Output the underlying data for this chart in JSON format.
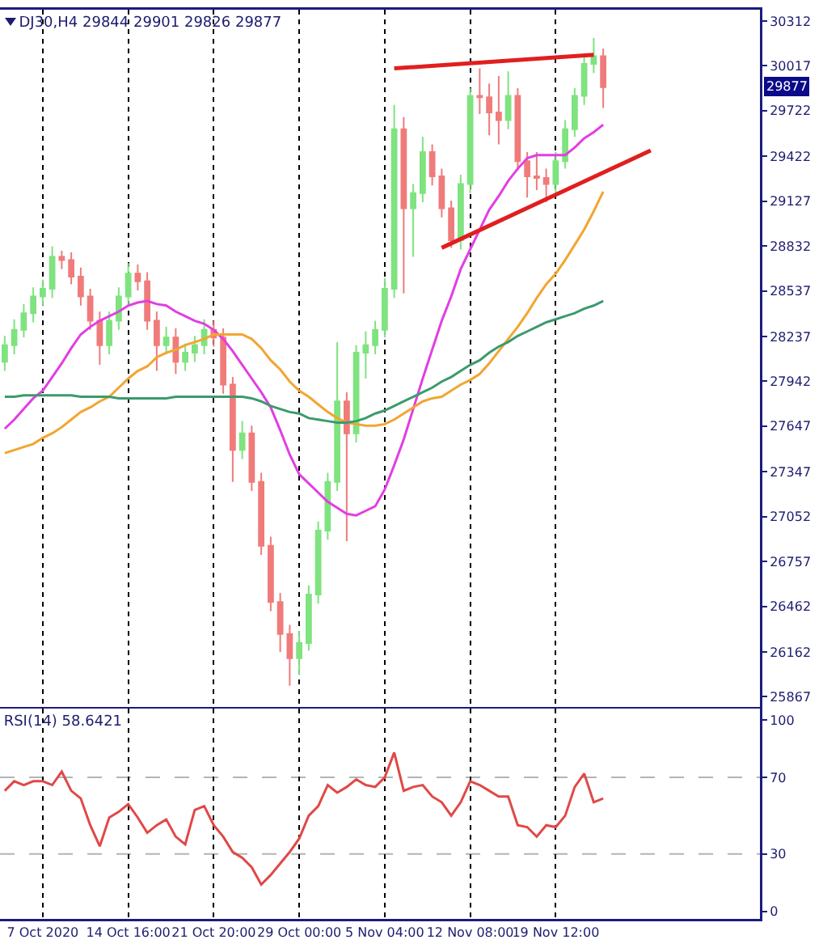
{
  "chart_data": [
    {
      "type": "candlestick",
      "title": "DJ30,H4 29844 29901 29826 29877",
      "categories": [
        null,
        null,
        null,
        null,
        null,
        null,
        null,
        null,
        null,
        null,
        null,
        null,
        null,
        null,
        null,
        null,
        null,
        null,
        null,
        null,
        null,
        null,
        null,
        null,
        null,
        null,
        null,
        null,
        null,
        null,
        null,
        null,
        null,
        null,
        null,
        null,
        null,
        null,
        null,
        null,
        null,
        null,
        null,
        null,
        null,
        null,
        null,
        null,
        null,
        null,
        null,
        null,
        null,
        null,
        null,
        null,
        null,
        null,
        null,
        null,
        null,
        null,
        null,
        null,
        null,
        null,
        null,
        null,
        null,
        null,
        null,
        null,
        null,
        null,
        null,
        null,
        null,
        null,
        null,
        null
      ],
      "ohlc": [
        [
          28070,
          28240,
          28010,
          28180
        ],
        [
          28180,
          28350,
          28120,
          28280
        ],
        [
          28280,
          28450,
          28230,
          28390
        ],
        [
          28390,
          28560,
          28330,
          28500
        ],
        [
          28500,
          28610,
          28440,
          28550
        ],
        [
          28550,
          28830,
          28490,
          28760
        ],
        [
          28760,
          28800,
          28680,
          28740
        ],
        [
          28740,
          28790,
          28580,
          28630
        ],
        [
          28630,
          28690,
          28440,
          28500
        ],
        [
          28500,
          28550,
          28280,
          28340
        ],
        [
          28340,
          28400,
          28050,
          28180
        ],
        [
          28180,
          28400,
          28120,
          28340
        ],
        [
          28340,
          28560,
          28280,
          28500
        ],
        [
          28500,
          28720,
          28440,
          28650
        ],
        [
          28650,
          28710,
          28540,
          28600
        ],
        [
          28600,
          28660,
          28280,
          28340
        ],
        [
          28340,
          28400,
          28010,
          28180
        ],
        [
          28180,
          28300,
          28120,
          28230
        ],
        [
          28230,
          28290,
          27990,
          28070
        ],
        [
          28070,
          28190,
          28010,
          28130
        ],
        [
          28130,
          28240,
          28070,
          28180
        ],
        [
          28180,
          28350,
          28120,
          28280
        ],
        [
          28280,
          28340,
          28170,
          28230
        ],
        [
          28230,
          28290,
          27860,
          27920
        ],
        [
          27920,
          27970,
          27280,
          27490
        ],
        [
          27490,
          27680,
          27430,
          27600
        ],
        [
          27600,
          27650,
          27220,
          27280
        ],
        [
          27280,
          27340,
          26800,
          26860
        ],
        [
          26860,
          26920,
          26430,
          26490
        ],
        [
          26490,
          26550,
          26160,
          26280
        ],
        [
          26280,
          26340,
          25940,
          26120
        ],
        [
          26120,
          26300,
          26010,
          26220
        ],
        [
          26220,
          26600,
          26170,
          26540
        ],
        [
          26540,
          27020,
          26480,
          26960
        ],
        [
          26960,
          27340,
          26900,
          27280
        ],
        [
          27280,
          28200,
          27220,
          27810
        ],
        [
          27810,
          27870,
          26890,
          27600
        ],
        [
          27600,
          28180,
          27540,
          28130
        ],
        [
          28130,
          28270,
          27960,
          28180
        ],
        [
          28180,
          28340,
          28120,
          28280
        ],
        [
          28280,
          28620,
          28230,
          28550
        ],
        [
          28550,
          29760,
          28490,
          29600
        ],
        [
          29600,
          29680,
          28520,
          29080
        ],
        [
          29080,
          29240,
          28760,
          29180
        ],
        [
          29180,
          29550,
          29120,
          29450
        ],
        [
          29450,
          29500,
          29230,
          29290
        ],
        [
          29290,
          29340,
          29020,
          29080
        ],
        [
          29080,
          29130,
          28820,
          28870
        ],
        [
          28870,
          29300,
          28810,
          29240
        ],
        [
          29240,
          29870,
          29180,
          29820
        ],
        [
          29820,
          30000,
          29700,
          29810
        ],
        [
          29810,
          29900,
          29560,
          29710
        ],
        [
          29710,
          29950,
          29500,
          29660
        ],
        [
          29660,
          29980,
          29600,
          29820
        ],
        [
          29820,
          29870,
          29330,
          29390
        ],
        [
          29390,
          29450,
          29150,
          29290
        ],
        [
          29290,
          29450,
          29200,
          29280
        ],
        [
          29280,
          29340,
          29120,
          29240
        ],
        [
          29240,
          29450,
          29180,
          29390
        ],
        [
          29390,
          29660,
          29340,
          29600
        ],
        [
          29600,
          29870,
          29550,
          29820
        ],
        [
          29820,
          30080,
          29760,
          30030
        ],
        [
          30030,
          30200,
          29970,
          30080
        ],
        [
          30080,
          30130,
          29740,
          29877
        ],
        null,
        null,
        null,
        null,
        null,
        null,
        null,
        null,
        null,
        null,
        null,
        null,
        null,
        null,
        null,
        null
      ],
      "colors": [
        "#7fe37f",
        "#7fe37f",
        "#7fe37f",
        "#7fe37f",
        "#7fe37f",
        "#7fe37f",
        "#f07b7b",
        "#f07b7b",
        "#f07b7b",
        "#f07b7b",
        "#f07b7b",
        "#7fe37f",
        "#7fe37f",
        "#7fe37f",
        "#f07b7b",
        "#f07b7b",
        "#f07b7b",
        "#7fe37f",
        "#f07b7b",
        "#7fe37f",
        "#7fe37f",
        "#7fe37f",
        "#f07b7b",
        "#f07b7b",
        "#f07b7b",
        "#7fe37f",
        "#f07b7b",
        "#f07b7b",
        "#f07b7b",
        "#f07b7b",
        "#f07b7b",
        "#7fe37f",
        "#7fe37f",
        "#7fe37f",
        "#7fe37f",
        "#7fe37f",
        "#f07b7b",
        "#7fe37f",
        "#7fe37f",
        "#7fe37f",
        "#7fe37f",
        "#7fe37f",
        "#f07b7b",
        "#7fe37f",
        "#7fe37f",
        "#f07b7b",
        "#f07b7b",
        "#f07b7b",
        "#7fe37f",
        "#7fe37f",
        "#f07b7b",
        "#f07b7b",
        "#f07b7b",
        "#7fe37f",
        "#f07b7b",
        "#f07b7b",
        "#f07b7b",
        "#f07b7b",
        "#7fe37f",
        "#7fe37f",
        "#7fe37f",
        "#7fe37f",
        "#7fe37f",
        "#f07b7b",
        null,
        null,
        null,
        null,
        null,
        null,
        null,
        null,
        null,
        null,
        null,
        null,
        null,
        null,
        null,
        null
      ],
      "series": [
        {
          "type": "line",
          "color": "#e23ee2",
          "values": [
            27630,
            27690,
            27760,
            27830,
            27880,
            27970,
            28060,
            28160,
            28250,
            28300,
            28340,
            28370,
            28400,
            28440,
            28460,
            28470,
            28450,
            28440,
            28400,
            28370,
            28340,
            28320,
            28280,
            28220,
            28140,
            28050,
            27960,
            27870,
            27770,
            27620,
            27460,
            27330,
            27270,
            27210,
            27150,
            27110,
            27070,
            27060,
            27090,
            27120,
            27230,
            27390,
            27560,
            27760,
            27960,
            28150,
            28340,
            28500,
            28680,
            28810,
            28940,
            29070,
            29160,
            29260,
            29340,
            29410,
            29430,
            29430,
            29430,
            29430,
            29480,
            29540,
            29580,
            29630,
            null,
            null,
            null,
            null,
            null,
            null,
            null,
            null,
            null,
            null,
            null,
            null,
            null,
            null,
            null,
            null
          ]
        },
        {
          "type": "line",
          "color": "#f2a531",
          "values": [
            27470,
            27490,
            27510,
            27530,
            27570,
            27600,
            27640,
            27690,
            27740,
            27770,
            27810,
            27840,
            27900,
            27960,
            28010,
            28040,
            28100,
            28130,
            28150,
            28180,
            28200,
            28220,
            28250,
            28250,
            28250,
            28250,
            28220,
            28160,
            28080,
            28020,
            27940,
            27880,
            27840,
            27790,
            27740,
            27700,
            27670,
            27660,
            27650,
            27650,
            27660,
            27690,
            27730,
            27770,
            27810,
            27830,
            27840,
            27880,
            27920,
            27950,
            27990,
            28060,
            28140,
            28220,
            28300,
            28390,
            28490,
            28580,
            28650,
            28740,
            28840,
            28940,
            29060,
            29190,
            null,
            null,
            null,
            null,
            null,
            null,
            null,
            null,
            null,
            null,
            null,
            null,
            null,
            null,
            null,
            null
          ]
        },
        {
          "type": "line",
          "color": "#3c9a6e",
          "values": [
            27840,
            27840,
            27850,
            27850,
            27850,
            27850,
            27850,
            27850,
            27840,
            27840,
            27840,
            27840,
            27830,
            27830,
            27830,
            27830,
            27830,
            27830,
            27840,
            27840,
            27840,
            27840,
            27840,
            27840,
            27840,
            27840,
            27830,
            27810,
            27780,
            27760,
            27740,
            27730,
            27700,
            27690,
            27680,
            27670,
            27670,
            27680,
            27700,
            27730,
            27750,
            27780,
            27810,
            27840,
            27870,
            27900,
            27940,
            27970,
            28010,
            28050,
            28080,
            28130,
            28170,
            28200,
            28240,
            28270,
            28300,
            28330,
            28350,
            28370,
            28390,
            28420,
            28440,
            28470,
            null,
            null,
            null,
            null,
            null,
            null,
            null,
            null,
            null,
            null,
            null,
            null,
            null,
            null,
            null,
            null
          ]
        },
        {
          "type": "line",
          "color": "#e01f1f",
          "values": [
            null,
            null,
            null,
            null,
            null,
            null,
            null,
            null,
            null,
            null,
            null,
            null,
            null,
            null,
            null,
            null,
            null,
            null,
            null,
            null,
            null,
            null,
            null,
            null,
            null,
            null,
            null,
            null,
            null,
            null,
            null,
            null,
            null,
            null,
            null,
            null,
            null,
            null,
            null,
            null,
            null,
            30000,
            null,
            null,
            null,
            null,
            null,
            null,
            null,
            null,
            null,
            null,
            null,
            null,
            null,
            null,
            null,
            null,
            null,
            null,
            null,
            null,
            30090,
            null,
            null,
            null,
            null,
            null,
            null,
            null,
            null,
            null,
            null,
            null,
            null,
            null,
            null,
            null,
            null,
            null
          ]
        },
        {
          "type": "line",
          "color": "#e01f1f",
          "values": [
            null,
            null,
            null,
            null,
            null,
            null,
            null,
            null,
            null,
            null,
            null,
            null,
            null,
            null,
            null,
            null,
            null,
            null,
            null,
            null,
            null,
            null,
            null,
            null,
            null,
            null,
            null,
            null,
            null,
            null,
            null,
            null,
            null,
            null,
            null,
            null,
            null,
            null,
            null,
            null,
            null,
            null,
            null,
            null,
            null,
            null,
            28820,
            null,
            null,
            null,
            null,
            null,
            null,
            null,
            null,
            null,
            null,
            null,
            null,
            null,
            null,
            null,
            null,
            null,
            null,
            null,
            null,
            null,
            29460,
            null,
            null,
            null,
            null,
            null,
            null,
            null,
            null,
            null,
            null,
            null
          ]
        }
      ],
      "annotations": [
        {
          "text": "29877",
          "y": 29877
        }
      ],
      "ylim": [
        25800,
        30386
      ],
      "yticks": [
        30312,
        30017,
        29722,
        29422,
        29127,
        28832,
        28537,
        28237,
        27942,
        27647,
        27347,
        27052,
        26757,
        26462,
        26162,
        25867
      ],
      "grid": "x",
      "legend": false,
      "tick_labels": "y"
    },
    {
      "type": "line",
      "title": "RSI(14) 58.6421",
      "categories": [
        null,
        null,
        null,
        null,
        "7 Oct 2020",
        null,
        null,
        null,
        null,
        null,
        null,
        null,
        null,
        "14 Oct 16:00",
        null,
        null,
        null,
        null,
        null,
        null,
        null,
        null,
        "21 Oct 20:00",
        null,
        null,
        null,
        null,
        null,
        null,
        null,
        null,
        "29 Oct 00:00",
        null,
        null,
        null,
        null,
        null,
        null,
        null,
        null,
        "5 Nov 04:00",
        null,
        null,
        null,
        null,
        null,
        null,
        null,
        null,
        "12 Nov 08:00",
        null,
        null,
        null,
        null,
        null,
        null,
        null,
        null,
        "19 Nov 12:00",
        null,
        null,
        null,
        null,
        null,
        null,
        null,
        null,
        null,
        null,
        null,
        null,
        null,
        null,
        null,
        null,
        null,
        null,
        null,
        null,
        null
      ],
      "series": [
        {
          "color": "#e04848",
          "values": [
            63,
            68,
            66,
            68,
            68,
            66,
            73,
            63,
            59,
            45,
            34,
            49,
            52,
            56,
            49,
            41,
            45,
            48,
            39,
            35,
            53,
            55,
            45,
            39,
            31,
            28,
            23,
            14,
            19,
            25,
            31,
            38,
            50,
            55,
            66,
            62,
            65,
            69,
            66,
            65,
            70,
            83,
            63,
            65,
            66,
            60,
            57,
            50,
            57,
            68,
            66,
            63,
            60,
            60,
            45,
            44,
            39,
            45,
            44,
            50,
            65,
            72,
            57,
            59,
            null,
            null,
            null,
            null,
            null,
            null,
            null,
            null,
            null,
            null,
            null,
            null,
            null,
            null,
            null,
            null
          ]
        }
      ],
      "ref_lines": [
        {
          "axis": "y",
          "value": 70,
          "color": "#b4b4b4",
          "line_style": "dashed"
        },
        {
          "axis": "y",
          "value": 30,
          "color": "#b4b4b4",
          "line_style": "dashed"
        }
      ],
      "ylim": [
        -4,
        106
      ],
      "yticks": [
        0,
        30,
        70,
        100
      ],
      "grid": "x",
      "legend": false
    }
  ]
}
